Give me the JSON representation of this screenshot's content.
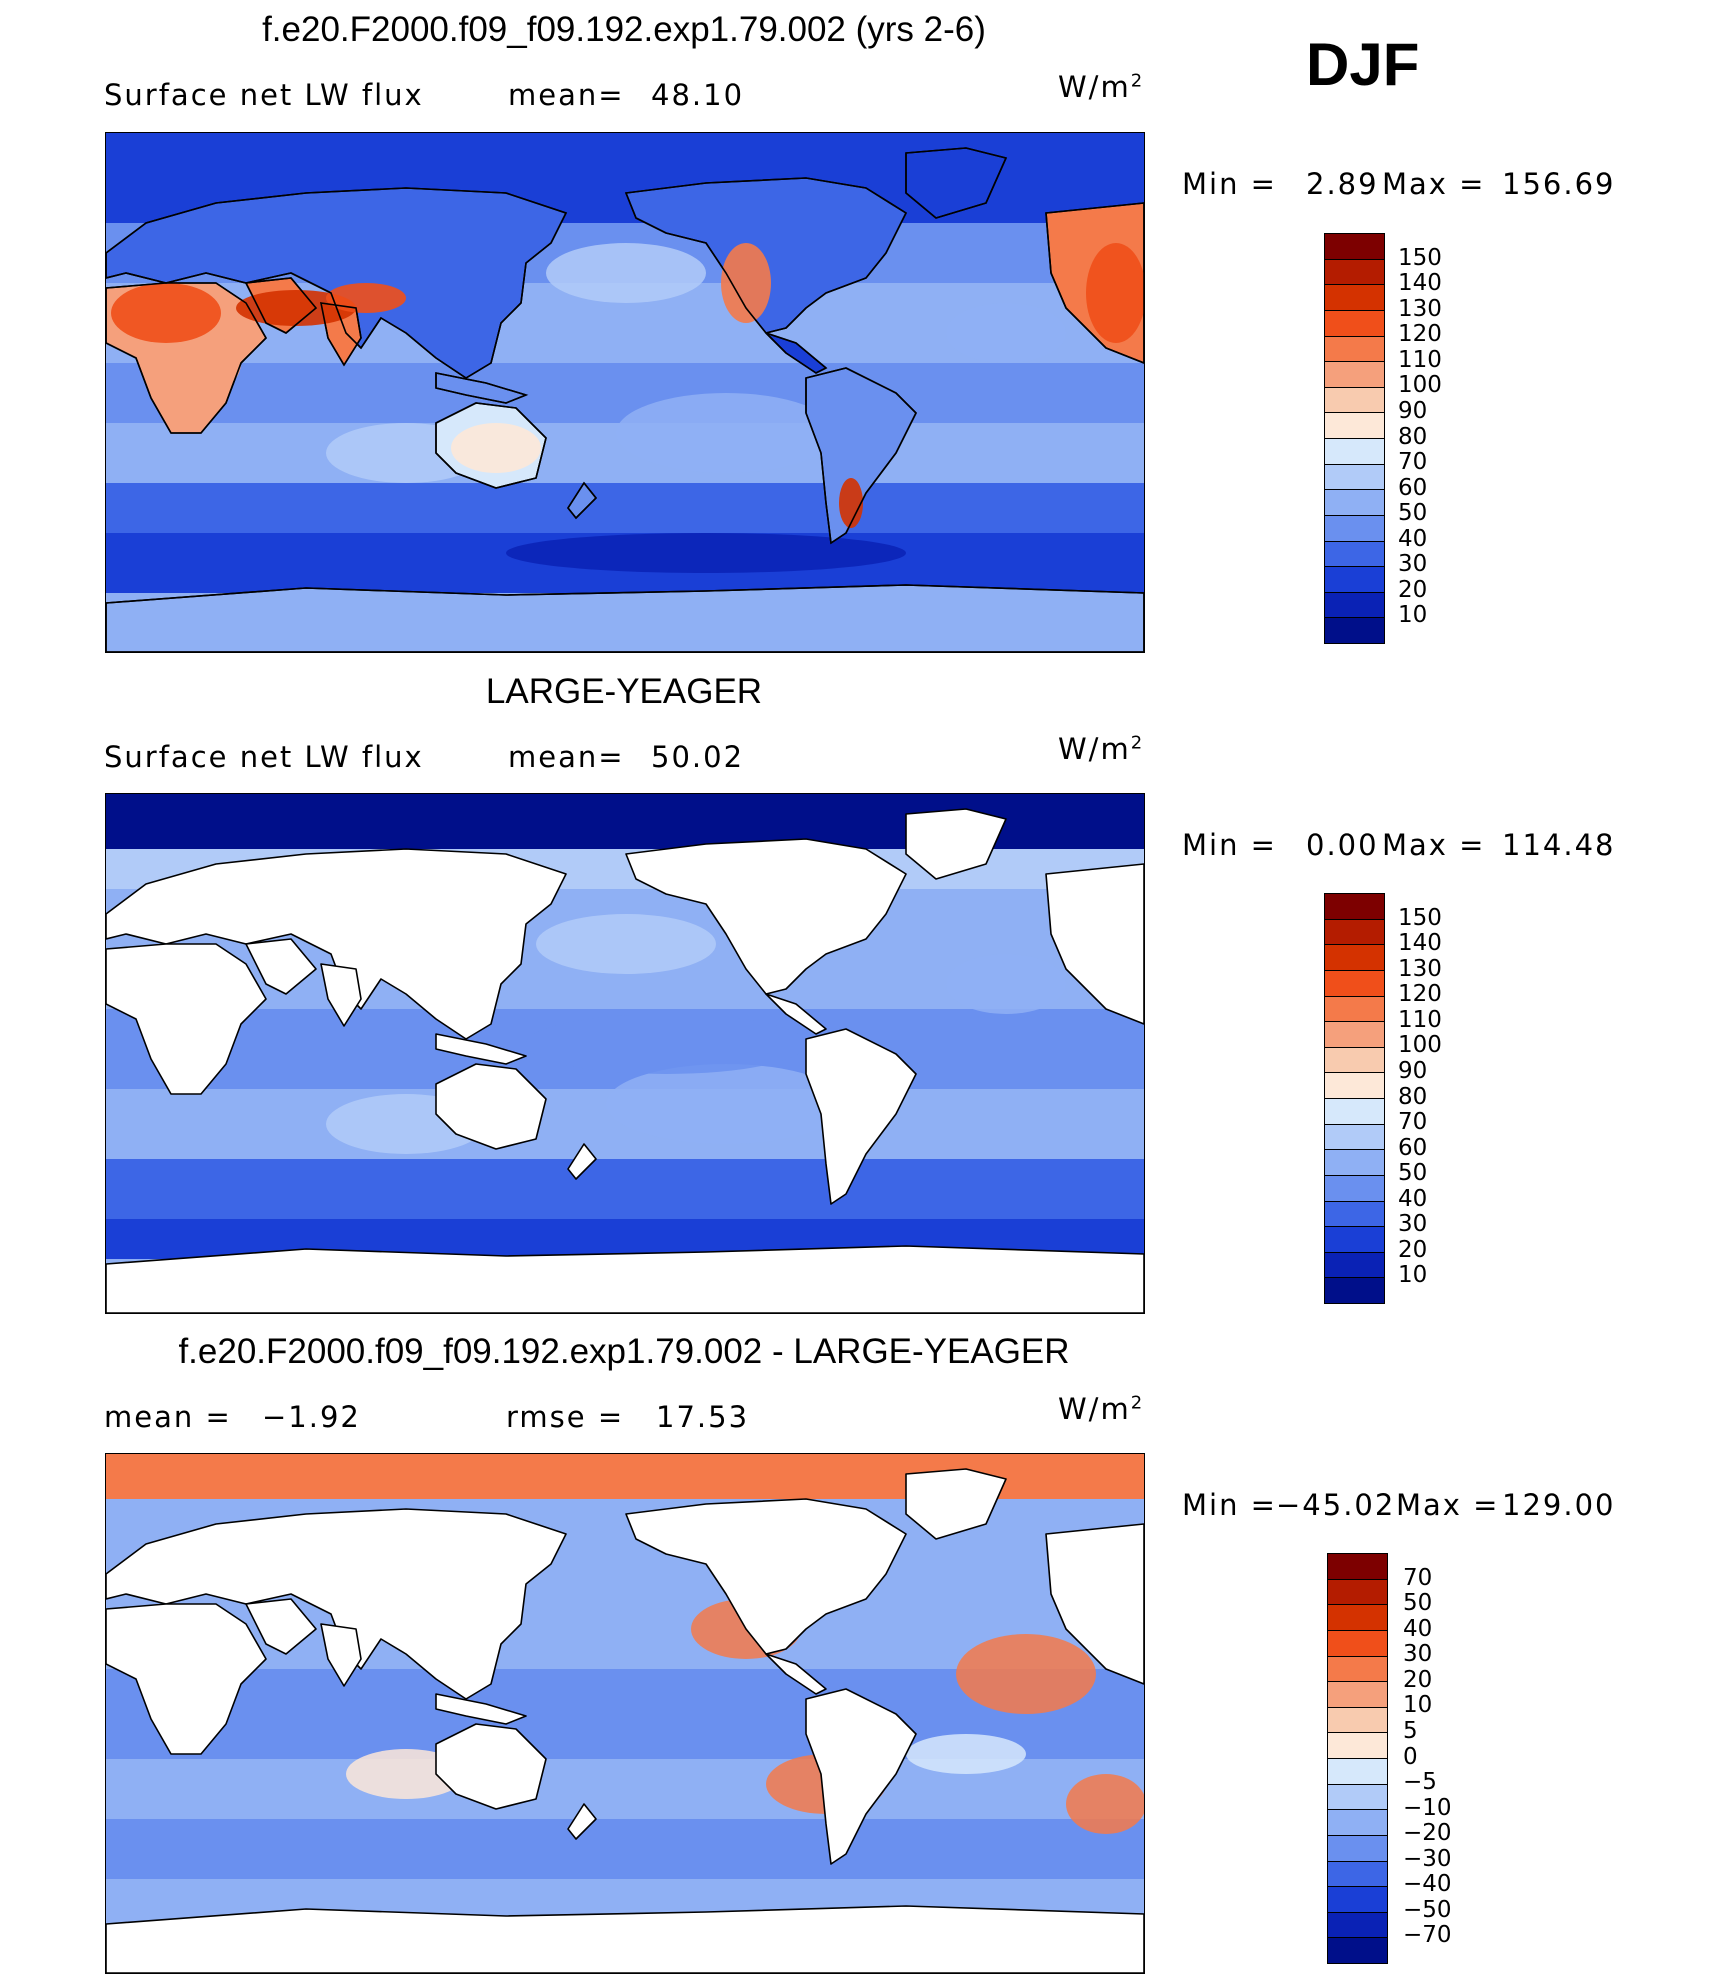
{
  "season": "DJF",
  "panels": [
    {
      "id": "model",
      "title": "f.e20.F2000.f09_f09.192.exp1.79.002 (yrs 2-6)",
      "left_label": "Surface net LW flux",
      "stat1_label": "mean=",
      "stat1_value": "48.10",
      "stat2_label": "",
      "stat2_value": "",
      "units": "W/m",
      "units_exp": "2",
      "min_label": "Min =",
      "min_value": "2.89",
      "max_label": "Max =",
      "max_value": "156.69",
      "land_masked": false,
      "colorbar": {
        "labels": [
          "150",
          "140",
          "130",
          "120",
          "110",
          "100",
          "90",
          "80",
          "70",
          "60",
          "50",
          "40",
          "30",
          "20",
          "10"
        ],
        "colors": [
          "#7d0000",
          "#b41c00",
          "#d43200",
          "#f04f1a",
          "#f47a4a",
          "#f5a07c",
          "#f8cbaf",
          "#fde8d8",
          "#d6e8fb",
          "#b1cbf8",
          "#8fb0f4",
          "#6a90ef",
          "#3d66e6",
          "#1a3fd6",
          "#0a22b5",
          "#000f8a"
        ]
      }
    },
    {
      "id": "obs",
      "title": "LARGE-YEAGER",
      "left_label": "Surface net LW flux",
      "stat1_label": "mean=",
      "stat1_value": "50.02",
      "stat2_label": "",
      "stat2_value": "",
      "units": "W/m",
      "units_exp": "2",
      "min_label": "Min =",
      "min_value": "0.00",
      "max_label": "Max =",
      "max_value": "114.48",
      "land_masked": true,
      "colorbar": {
        "labels": [
          "150",
          "140",
          "130",
          "120",
          "110",
          "100",
          "90",
          "80",
          "70",
          "60",
          "50",
          "40",
          "30",
          "20",
          "10"
        ],
        "colors": [
          "#7d0000",
          "#b41c00",
          "#d43200",
          "#f04f1a",
          "#f47a4a",
          "#f5a07c",
          "#f8cbaf",
          "#fde8d8",
          "#d6e8fb",
          "#b1cbf8",
          "#8fb0f4",
          "#6a90ef",
          "#3d66e6",
          "#1a3fd6",
          "#0a22b5",
          "#000f8a"
        ]
      }
    },
    {
      "id": "diff",
      "title": "f.e20.F2000.f09_f09.192.exp1.79.002 - LARGE-YEAGER",
      "left_label": "mean =",
      "stat1_label": "",
      "stat1_value": "−1.92",
      "stat2_label": "rmse =",
      "stat2_value": "17.53",
      "units": "W/m",
      "units_exp": "2",
      "min_label": "Min =",
      "min_value": "−45.02",
      "max_label": "Max =",
      "max_value": "129.00",
      "land_masked": true,
      "colorbar": {
        "labels": [
          "70",
          "50",
          "40",
          "30",
          "20",
          "10",
          "5",
          "0",
          "−5",
          "−10",
          "−20",
          "−30",
          "−40",
          "−50",
          "−70"
        ],
        "colors": [
          "#7d0000",
          "#b41c00",
          "#d43200",
          "#f04f1a",
          "#f47a4a",
          "#f5a07c",
          "#f8cbaf",
          "#fde8d8",
          "#d6e8fb",
          "#b1cbf8",
          "#8fb0f4",
          "#6a90ef",
          "#3d66e6",
          "#1a3fd6",
          "#0a22b5",
          "#000f8a"
        ]
      }
    }
  ]
}
